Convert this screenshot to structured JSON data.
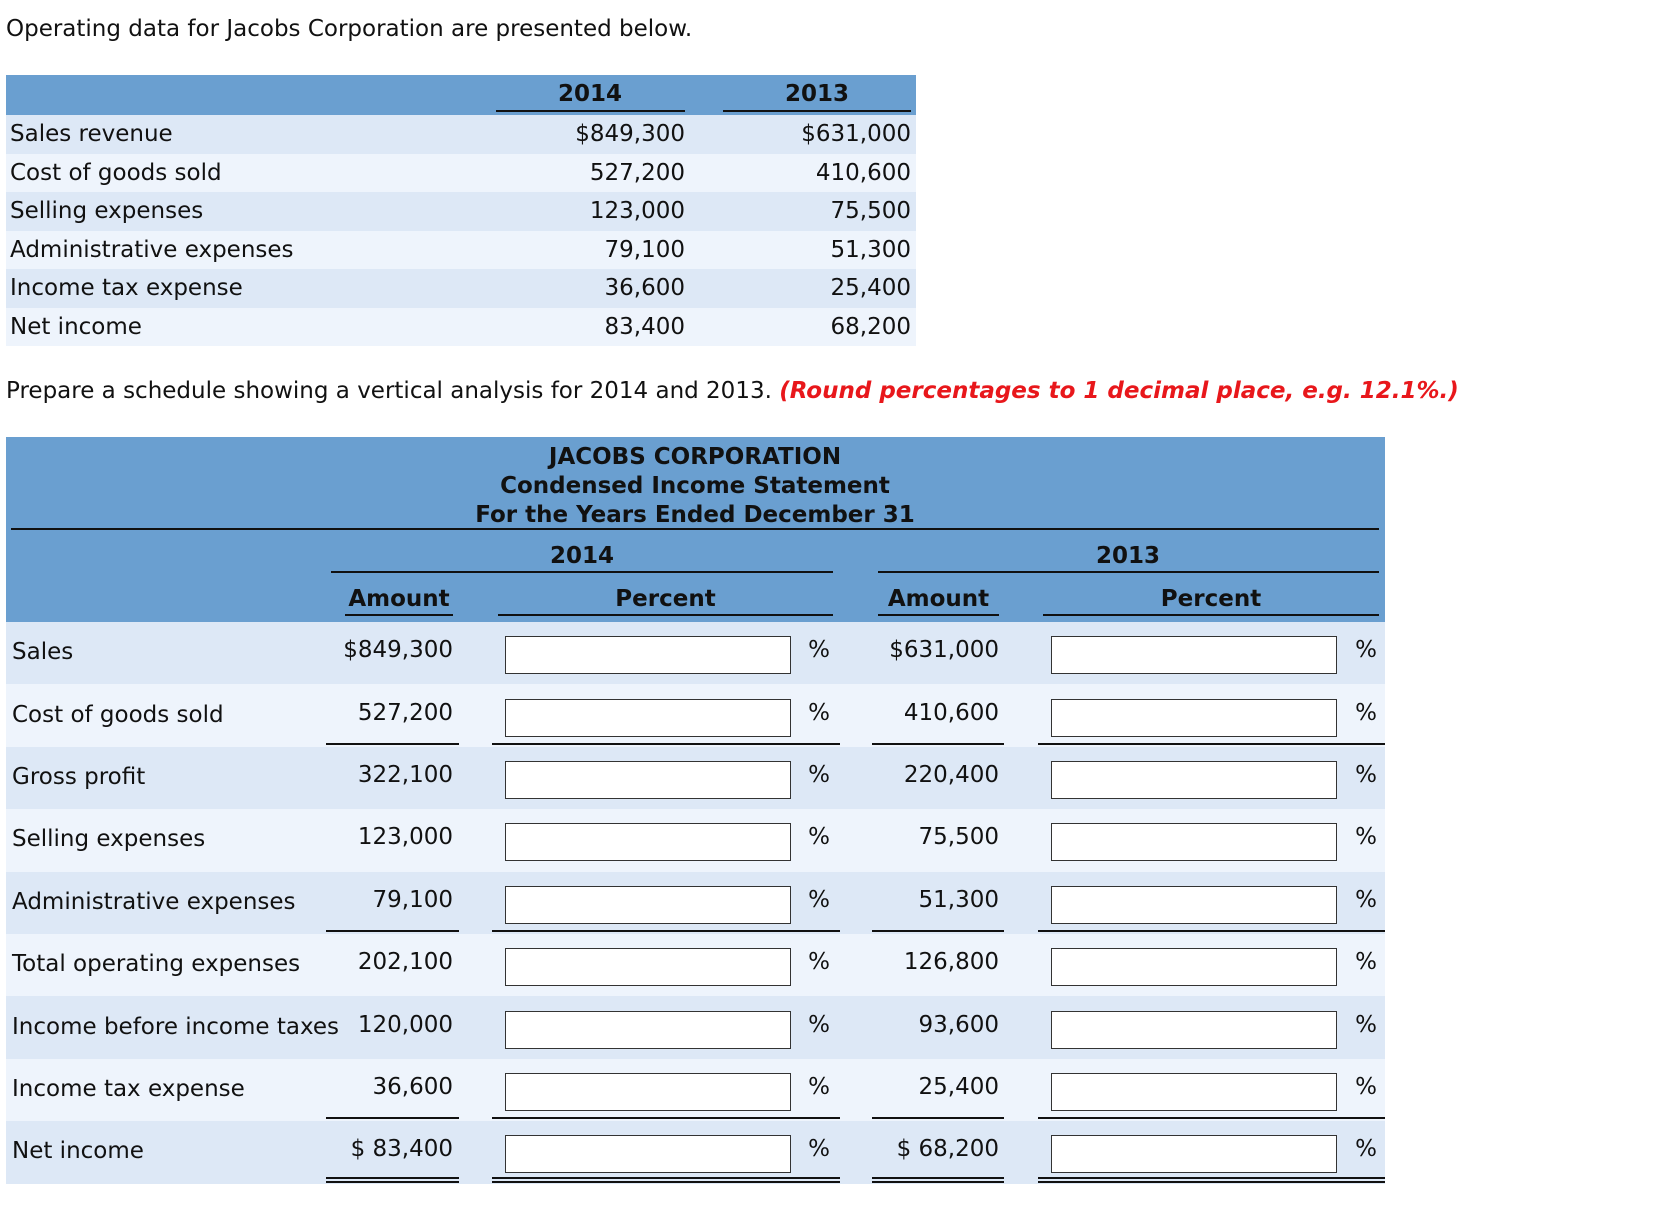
{
  "intro": "Operating data for Jacobs Corporation are presented below.",
  "data_table": {
    "columns": [
      "2014",
      "2013"
    ],
    "rows": [
      [
        "Sales revenue",
        "$849,300",
        "$631,000"
      ],
      [
        "Cost of goods sold",
        "527,200",
        "410,600"
      ],
      [
        "Selling expenses",
        "123,000",
        "75,500"
      ],
      [
        "Administrative expenses",
        "79,100",
        "51,300"
      ],
      [
        "Income tax expense",
        "36,600",
        "25,400"
      ],
      [
        "Net income",
        "83,400",
        "68,200"
      ]
    ]
  },
  "instruction": "Prepare a schedule showing a vertical analysis for 2014 and 2013.",
  "instruction_note": "(Round percentages to 1 decimal place, e.g. 12.1%.)",
  "schedule": {
    "title": [
      "JACOBS CORPORATION",
      "Condensed Income Statement",
      "For the Years Ended December 31"
    ],
    "years": [
      "2014",
      "2013"
    ],
    "column_headers": [
      "Amount",
      "Percent",
      "Amount",
      "Percent"
    ],
    "percent_sign": "%",
    "rows": [
      [
        "Sales",
        "$849,300",
        "$631,000"
      ],
      [
        "Cost of goods sold",
        "527,200",
        "410,600"
      ],
      [
        "Gross profit",
        "322,100",
        "220,400"
      ],
      [
        "Selling expenses",
        "123,000",
        "75,500"
      ],
      [
        "Administrative expenses",
        "79,100",
        "51,300"
      ],
      [
        "Total operating expenses",
        "202,100",
        "126,800"
      ],
      [
        "Income before income taxes",
        "120,000",
        "93,600"
      ],
      [
        "Income tax expense",
        "36,600",
        "25,400"
      ],
      [
        "Net income",
        "$ 83,400",
        "$ 68,200"
      ]
    ]
  }
}
